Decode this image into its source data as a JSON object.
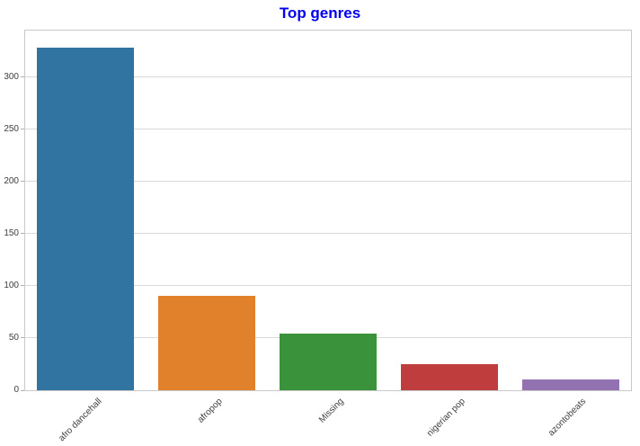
{
  "chart_data": {
    "type": "bar",
    "title": "Top genres",
    "title_color": "#0000ee",
    "categories": [
      "afro dancehall",
      "afropop",
      "Missing",
      "nigerian pop",
      "azontobeats"
    ],
    "values": [
      328,
      90,
      54,
      25,
      10
    ],
    "bar_colors": [
      "#3274a1",
      "#e1812c",
      "#3a923a",
      "#c03d3e",
      "#9372b2"
    ],
    "xlabel": "",
    "ylabel": "",
    "yticks": [
      0,
      50,
      100,
      150,
      200,
      250,
      300
    ],
    "ylim": [
      0,
      344.4
    ],
    "grid": true,
    "grid_color": "#d9d9d9",
    "spine_color": "#c9c9c9",
    "tick_color": "#b0b0b0",
    "tick_label_color": "#3d3d3d",
    "legend": false,
    "bar_width_fraction": 0.8,
    "x_label_rotation_deg": 45
  }
}
